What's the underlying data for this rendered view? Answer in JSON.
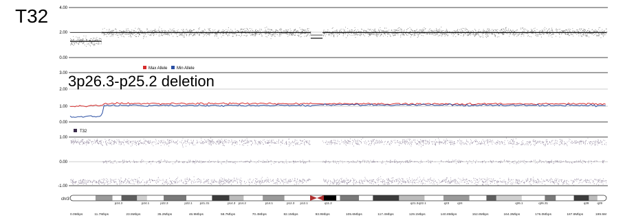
{
  "panel_label": "T32",
  "annotation": "3p26.3-p25.2 deletion",
  "colors": {
    "max_allele": "#d62c2c",
    "min_allele": "#2a4fa3",
    "sample": "#3a2a4a",
    "depth_points": "#1a1a1a",
    "baf_points": "#5a4a6a"
  },
  "chart_data": [
    {
      "type": "scatter",
      "title": "",
      "ylim": [
        0,
        4
      ],
      "yticks": [
        "4.00",
        "2.00",
        "0.00"
      ],
      "grid": true,
      "segments": [
        {
          "x": [
            0.0,
            11.7
          ],
          "y": 1.3
        },
        {
          "x": [
            11.7,
            89.5
          ],
          "y": 2.0
        },
        {
          "x": [
            89.5,
            93.9
          ],
          "y": 1.55
        },
        {
          "x": [
            93.9,
            199.5
          ],
          "y": 2.0
        }
      ],
      "gap_mbp": [
        89.5,
        93.9
      ]
    },
    {
      "type": "line",
      "legend_position": "top-left",
      "ylim": [
        0,
        3
      ],
      "yticks": [
        "3.00",
        "2.00",
        "1.00",
        "0.00"
      ],
      "series": [
        {
          "name": "Max Allele",
          "color": "#d62c2c",
          "x": [
            0,
            11.7,
            12.5,
            89.5,
            93.9,
            199.5
          ],
          "y": [
            0.95,
            1.0,
            1.12,
            1.12,
            1.1,
            1.1
          ]
        },
        {
          "name": "Min Allele",
          "color": "#2a4fa3",
          "x": [
            0,
            11.7,
            12.5,
            89.5,
            93.9,
            199.5
          ],
          "y": [
            0.3,
            0.35,
            1.0,
            1.0,
            1.05,
            1.0
          ]
        }
      ]
    },
    {
      "type": "scatter",
      "legend_position": "top-left",
      "ylim": [
        -1,
        1
      ],
      "yticks": [
        "1.00",
        "0.00",
        "-1.00"
      ],
      "series": [
        {
          "name": "T32",
          "color": "#3a2a4a"
        }
      ],
      "gap_mbp": [
        89.5,
        93.9
      ]
    }
  ],
  "ideogram": {
    "chromosome": "chr3",
    "bands": [
      "p24.3",
      "p24.1",
      "p22.3",
      "p22.1",
      "p21.31",
      "p14.3",
      "p14.2",
      "p14.1",
      "p12.3",
      "p12.1",
      "q11.2",
      "q21.3",
      "q22.1",
      "q23",
      "q24",
      "q26.1",
      "q26.31",
      "q28",
      "q29"
    ],
    "band_mbp": [
      18,
      28,
      35,
      44,
      50,
      60,
      64,
      74,
      82,
      87,
      96,
      128,
      131,
      140,
      145,
      167,
      176,
      192,
      197
    ]
  },
  "x_axis": {
    "ticks": [
      "0.0Mbps",
      "11.7Mbps",
      "23.5Mbps",
      "35.2Mbps",
      "46.9Mbps",
      "58.7Mbps",
      "70.4Mbps",
      "82.1Mbps",
      "93.9Mbps",
      "105.6Mbps",
      "117.4Mbps",
      "129.1Mbps",
      "140.8Mbps",
      "152.6Mbps",
      "164.3Mbps",
      "176.0Mbps",
      "187.8Mbps",
      "199.5M"
    ],
    "values": [
      0.0,
      11.7,
      23.5,
      35.2,
      46.9,
      58.7,
      70.4,
      82.1,
      93.9,
      105.6,
      117.4,
      129.1,
      140.8,
      152.6,
      164.3,
      176.0,
      187.8,
      199.5
    ]
  }
}
